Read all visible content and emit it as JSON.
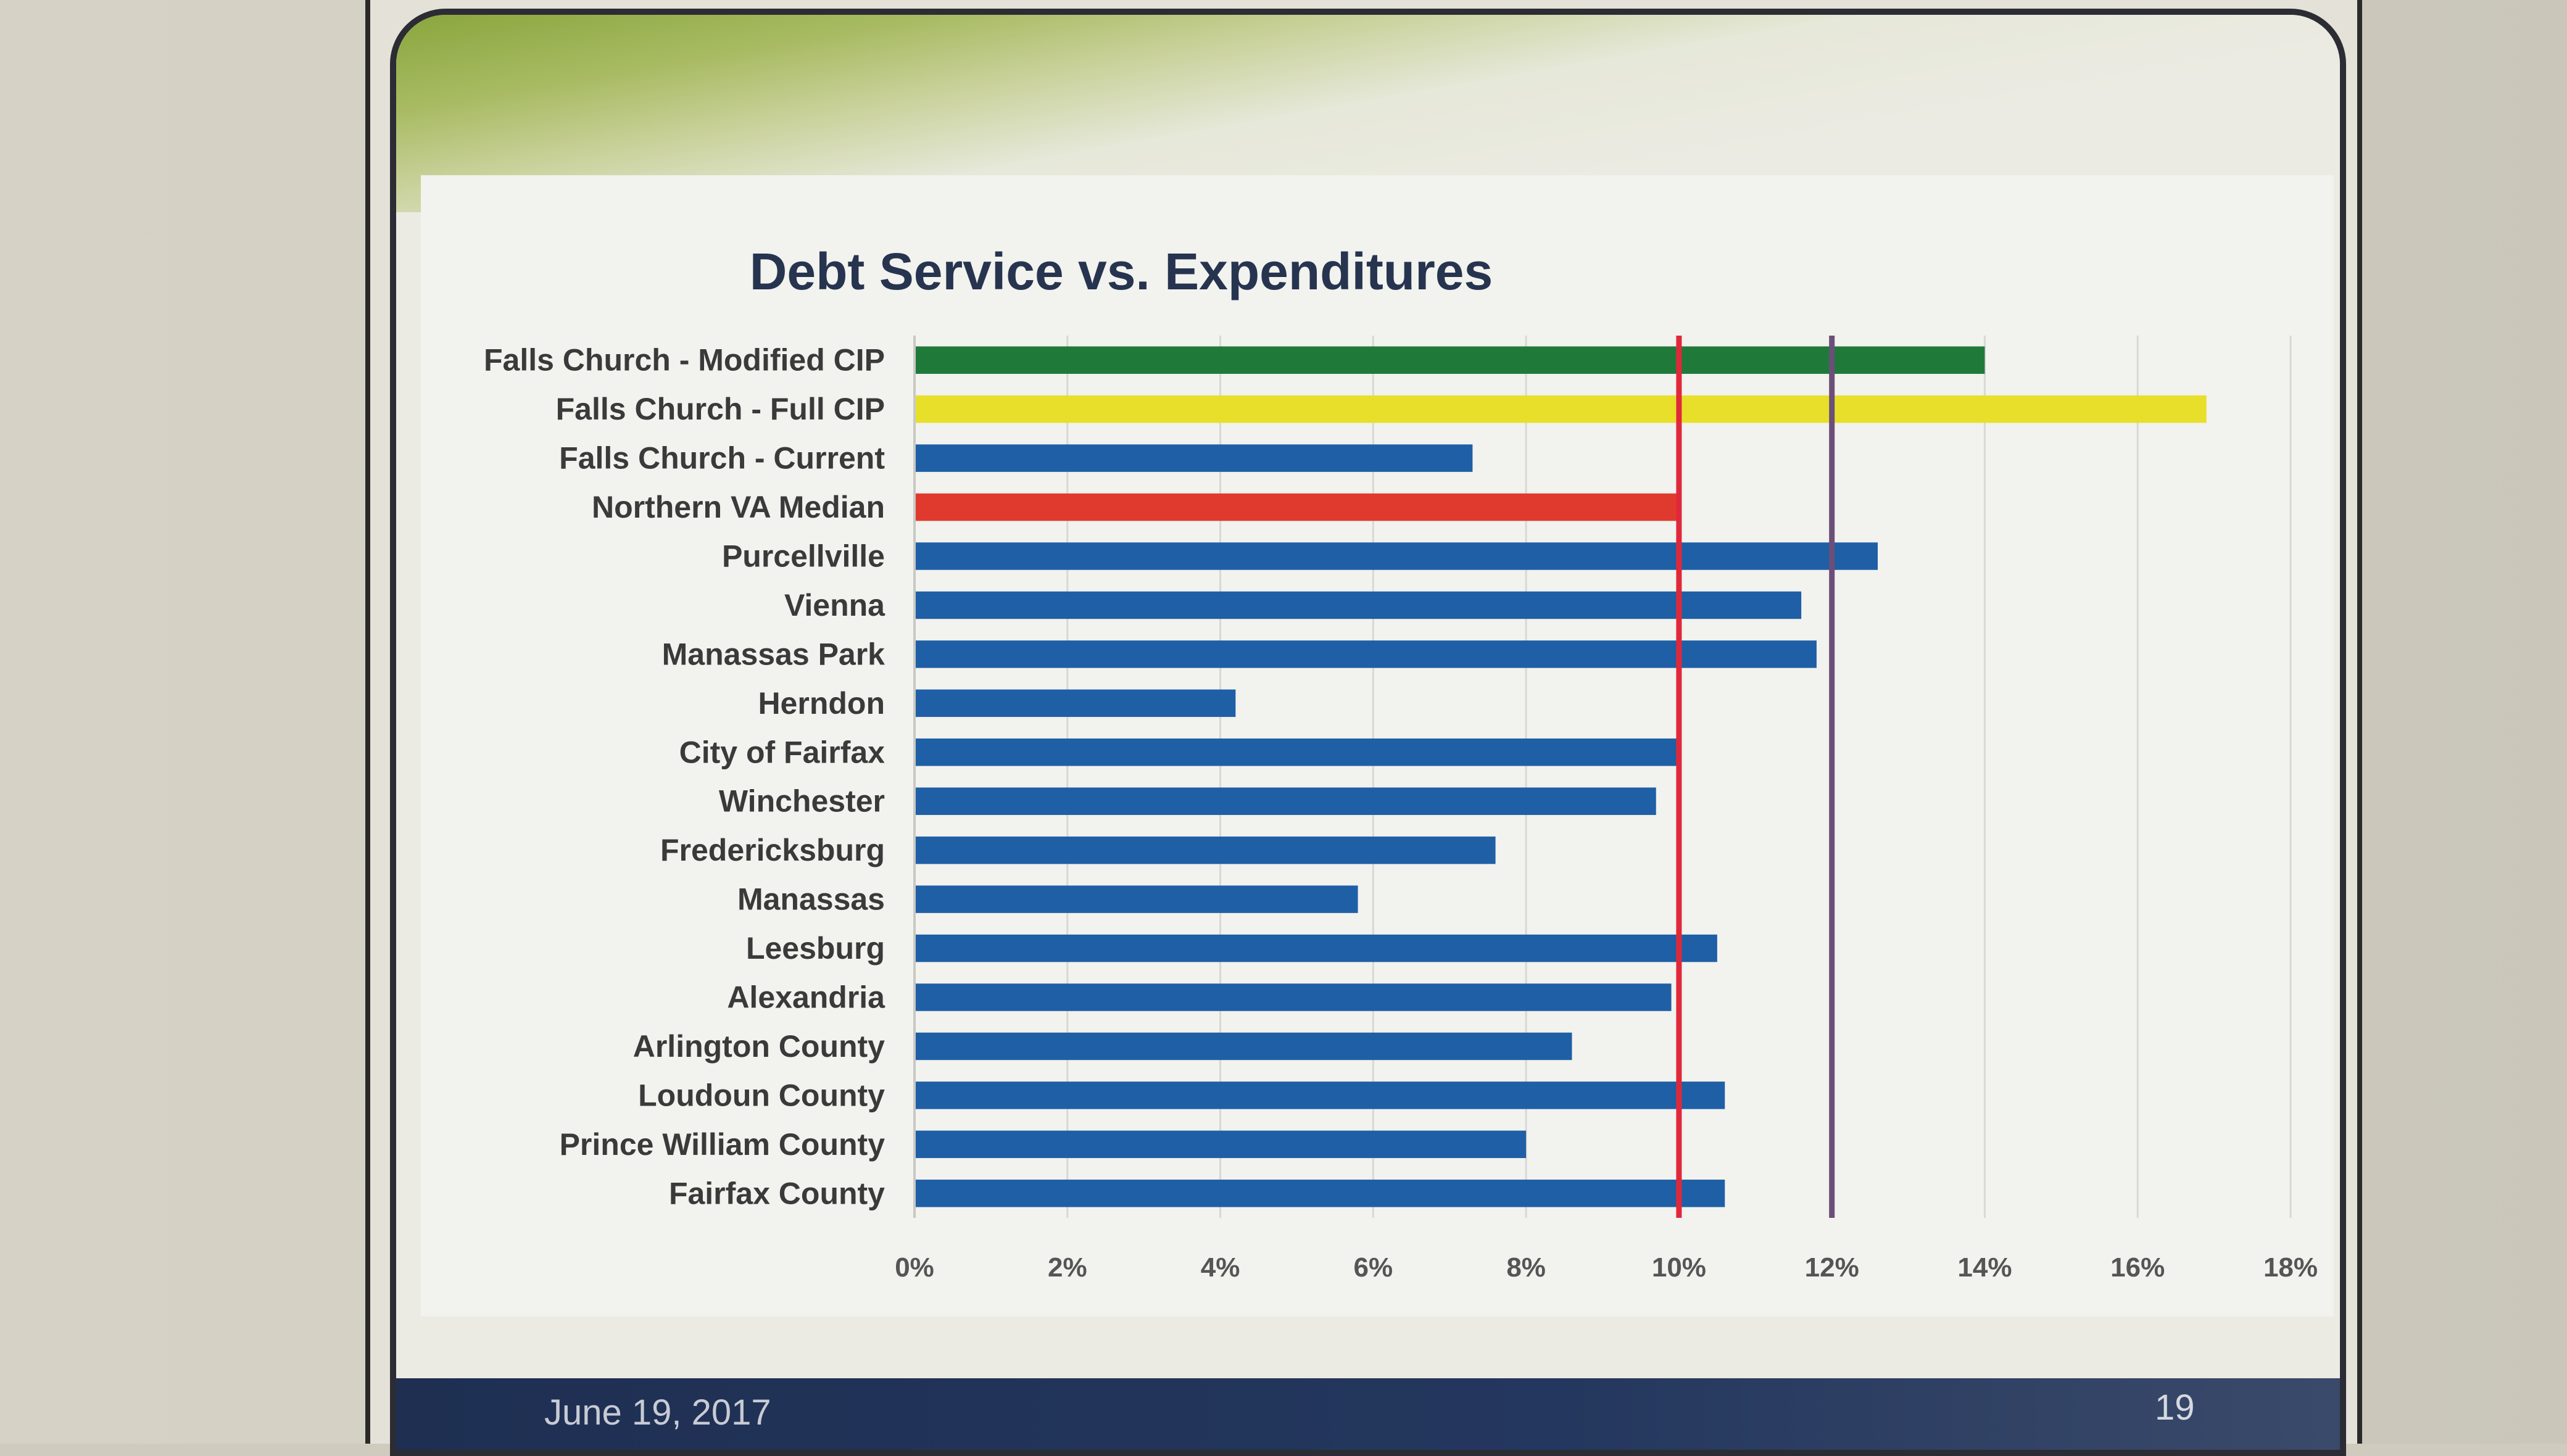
{
  "slide": {
    "date": "June 19, 2017",
    "page_number": "19"
  },
  "chart_data": {
    "type": "bar",
    "orientation": "horizontal",
    "title": "Debt Service vs. Expenditures",
    "xlabel": "",
    "ylabel": "",
    "xlim": [
      0,
      18
    ],
    "x_ticks": [
      "0%",
      "2%",
      "4%",
      "6%",
      "8%",
      "10%",
      "12%",
      "14%",
      "16%",
      "18%"
    ],
    "grid": true,
    "categories": [
      "Falls Church - Modified CIP",
      "Falls Church - Full CIP",
      "Falls Church - Current",
      "Northern VA Median",
      "Purcellville",
      "Vienna",
      "Manassas Park",
      "Herndon",
      "City of Fairfax",
      "Winchester",
      "Fredericksburg",
      "Manassas",
      "Leesburg",
      "Alexandria",
      "Arlington County",
      "Loudoun County",
      "Prince William County",
      "Fairfax County"
    ],
    "values": [
      14.0,
      16.9,
      7.3,
      10.0,
      12.6,
      11.6,
      11.8,
      4.2,
      10.0,
      9.7,
      7.6,
      5.8,
      10.5,
      9.9,
      8.6,
      10.6,
      8.0,
      10.6
    ],
    "bar_colors": [
      "#1f7a3a",
      "#e8df2a",
      "#1f5fa6",
      "#e03a2e",
      "#1f5fa6",
      "#1f5fa6",
      "#1f5fa6",
      "#1f5fa6",
      "#1f5fa6",
      "#1f5fa6",
      "#1f5fa6",
      "#1f5fa6",
      "#1f5fa6",
      "#1f5fa6",
      "#1f5fa6",
      "#1f5fa6",
      "#1f5fa6",
      "#1f5fa6"
    ],
    "reference_lines": [
      {
        "value": 10,
        "color": "#e0283a"
      },
      {
        "value": 12,
        "color": "#6b4f78"
      }
    ],
    "colors": {
      "title": "#26344f",
      "category_label": "#3a3a3a",
      "tick_label": "#555555",
      "grid": "#d8d8d4"
    }
  }
}
